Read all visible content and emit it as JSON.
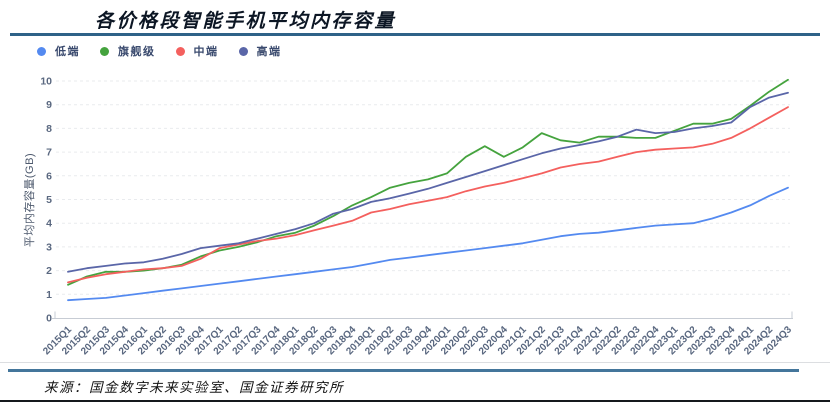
{
  "header": {
    "title": "各价格段智能手机平均内存容量"
  },
  "footer": {
    "source": "来源：国金数字未来实验室、国金证券研究所"
  },
  "axis": {
    "y_ticks": [
      0,
      1,
      2,
      3,
      4,
      5,
      6,
      7,
      8,
      9,
      10
    ]
  },
  "chart_data": {
    "type": "line",
    "title": "各价格段智能手机平均内存容量",
    "ylabel": "平均内存容量(GB)",
    "xlabel": "",
    "ylim": [
      0,
      10
    ],
    "ytick_step": 1,
    "grid": "horizontal-dashed",
    "legend_position": "top-left",
    "categories": [
      "2015Q1",
      "2015Q2",
      "2015Q3",
      "2015Q4",
      "2016Q1",
      "2016Q2",
      "2016Q3",
      "2016Q4",
      "2017Q1",
      "2017Q2",
      "2017Q3",
      "2017Q4",
      "2018Q1",
      "2018Q2",
      "2018Q3",
      "2018Q4",
      "2019Q1",
      "2019Q2",
      "2019Q3",
      "2019Q4",
      "2020Q1",
      "2020Q2",
      "2020Q3",
      "2020Q4",
      "2021Q1",
      "2021Q2",
      "2021Q3",
      "2021Q4",
      "2022Q1",
      "2022Q2",
      "2022Q3",
      "2022Q4",
      "2023Q1",
      "2023Q2",
      "2023Q3",
      "2023Q4",
      "2024Q1",
      "2024Q2",
      "2024Q3"
    ],
    "series": [
      {
        "key": "low-end",
        "name": "低端",
        "color": "#548af0",
        "values": [
          0.75,
          0.8,
          0.85,
          0.95,
          1.05,
          1.15,
          1.25,
          1.35,
          1.45,
          1.55,
          1.65,
          1.75,
          1.85,
          1.95,
          2.05,
          2.15,
          2.3,
          2.45,
          2.55,
          2.65,
          2.75,
          2.85,
          2.95,
          3.05,
          3.15,
          3.3,
          3.45,
          3.55,
          3.6,
          3.7,
          3.8,
          3.9,
          3.95,
          4.0,
          4.2,
          4.45,
          4.75,
          5.15,
          5.5
        ]
      },
      {
        "key": "flagship",
        "name": "旗舰级",
        "color": "#45a33e",
        "values": [
          1.4,
          1.75,
          1.95,
          1.95,
          2.0,
          2.1,
          2.25,
          2.6,
          2.85,
          3.0,
          3.2,
          3.45,
          3.6,
          3.9,
          4.3,
          4.75,
          5.1,
          5.5,
          5.7,
          5.85,
          6.1,
          6.8,
          7.25,
          6.8,
          7.2,
          7.8,
          7.5,
          7.4,
          7.65,
          7.65,
          7.6,
          7.6,
          7.9,
          8.2,
          8.2,
          8.4,
          8.95,
          9.55,
          10.05
        ]
      },
      {
        "key": "mid-range",
        "name": "中端",
        "color": "#f4605e",
        "values": [
          1.5,
          1.7,
          1.85,
          1.95,
          2.05,
          2.1,
          2.2,
          2.5,
          2.95,
          3.1,
          3.25,
          3.35,
          3.5,
          3.7,
          3.9,
          4.1,
          4.45,
          4.6,
          4.8,
          4.95,
          5.1,
          5.35,
          5.55,
          5.7,
          5.9,
          6.1,
          6.35,
          6.5,
          6.6,
          6.8,
          7.0,
          7.1,
          7.15,
          7.2,
          7.35,
          7.6,
          8.0,
          8.45,
          8.9
        ]
      },
      {
        "key": "high-end",
        "name": "高端",
        "color": "#5a66a8",
        "values": [
          1.95,
          2.1,
          2.2,
          2.3,
          2.35,
          2.5,
          2.7,
          2.95,
          3.05,
          3.15,
          3.35,
          3.55,
          3.75,
          4.0,
          4.4,
          4.6,
          4.9,
          5.05,
          5.25,
          5.45,
          5.7,
          5.95,
          6.2,
          6.45,
          6.7,
          6.95,
          7.15,
          7.3,
          7.45,
          7.65,
          7.95,
          7.8,
          7.85,
          8.0,
          8.1,
          8.25,
          8.9,
          9.3,
          9.5
        ]
      }
    ]
  },
  "style": {
    "grid_color": "#e9ebee",
    "axis_line_color": "#c7ccd4",
    "tick_label_color": "#5a6880",
    "ylabel_color": "#4e5a6e",
    "rule_color": "#2e6288",
    "footer_rule_color": "#44769b"
  }
}
